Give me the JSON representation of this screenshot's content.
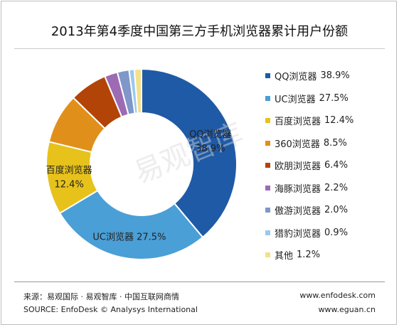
{
  "chart_data": {
    "type": "pie",
    "title": "2013年第4季度中国第三方手机浏览器累计用户份额",
    "categories": [
      "QQ浏览器",
      "UC浏览器",
      "百度浏览器",
      "360浏览器",
      "欧朋浏览器",
      "海豚浏览器",
      "傲游浏览器",
      "猎豹浏览器",
      "其他"
    ],
    "values": [
      38.9,
      27.5,
      12.4,
      8.5,
      6.4,
      2.2,
      2.0,
      0.9,
      1.2
    ],
    "value_labels": [
      "38.9%",
      "27.5%",
      "12.4%",
      "8.5%",
      "6.4%",
      "2.2%",
      "2.0%",
      "0.9%",
      "1.2%"
    ],
    "colors": [
      "#1f5aa6",
      "#4a9fd6",
      "#e7c21b",
      "#e0901a",
      "#b24407",
      "#9c6bb3",
      "#7f97c9",
      "#9bc9ee",
      "#f3e08a"
    ],
    "legend_position": "right",
    "slice_labels": [
      {
        "name": "QQ浏览器",
        "value": "38.9%"
      },
      {
        "name": "UC浏览器",
        "value": "27.5%"
      },
      {
        "name": "百度浏览器",
        "value": "12.4%"
      }
    ]
  },
  "watermark": "易观智库",
  "footer": {
    "source_cn": "来源：易观国际 · 易观智库 · 中国互联网商情",
    "source_en": "SOURCE: EnfoDesk © Analysys International",
    "url1": "www.enfodesk.com",
    "url2": "www.eguan.cn"
  }
}
